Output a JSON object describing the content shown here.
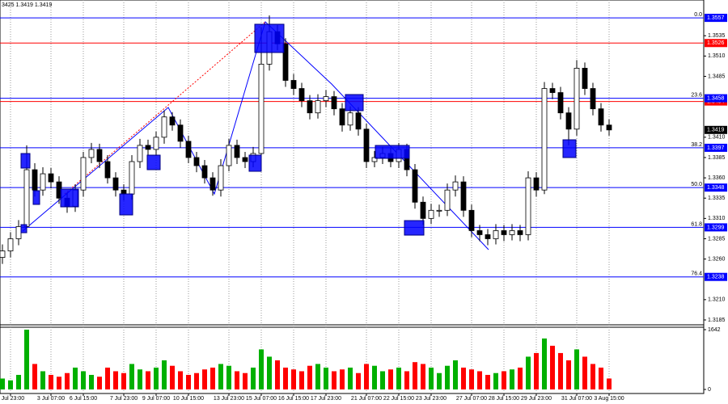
{
  "chart_data": {
    "type": "candlestick",
    "title": "3425 1.3419 1.3419",
    "categories": [
      null,
      "1 Jul 23:00",
      null,
      null,
      null,
      null,
      "3 Jul 07:00",
      null,
      null,
      null,
      "6 Jul 15:00",
      null,
      null,
      null,
      null,
      "7 Jul 23:00",
      null,
      null,
      null,
      "9 Jul 07:00",
      null,
      null,
      null,
      "10 Jul 15:00",
      null,
      null,
      null,
      null,
      "13 Jul 23:00",
      null,
      null,
      null,
      "15 Jul 07:00",
      null,
      null,
      null,
      "16 Jul 15:00",
      null,
      null,
      null,
      "17 Jul 23:00",
      null,
      null,
      null,
      null,
      "21 Jul 07:00",
      null,
      null,
      null,
      "22 Jul 15:00",
      null,
      null,
      null,
      "23 Jul 23:00",
      null,
      null,
      null,
      null,
      "27 Jul 07:00",
      null,
      null,
      null,
      "28 Jul 15:00",
      null,
      null,
      null,
      "29 Jul 23:00",
      null,
      null,
      null,
      null,
      "31 Jul 07:00",
      null,
      null,
      null,
      "3 Aug 15:00"
    ],
    "open": [
      1.3262,
      1.327,
      1.3285,
      1.33,
      1.337,
      1.3345,
      1.3365,
      1.3355,
      1.3335,
      1.3325,
      1.3345,
      1.3385,
      1.3395,
      1.338,
      1.336,
      1.3345,
      1.334,
      1.338,
      1.34,
      1.3395,
      1.341,
      1.3435,
      1.3425,
      1.3405,
      1.3385,
      1.3375,
      1.336,
      1.3345,
      1.3375,
      1.34,
      1.3385,
      1.338,
      1.339,
      1.35,
      1.354,
      1.3525,
      1.348,
      1.347,
      1.3455,
      1.344,
      1.3455,
      1.346,
      1.3445,
      1.3425,
      1.344,
      1.342,
      1.338,
      1.3385,
      1.339,
      1.338,
      1.3395,
      1.337,
      1.333,
      1.331,
      1.332,
      1.332,
      1.3345,
      1.3355,
      1.332,
      1.3295,
      1.329,
      1.3285,
      1.3295,
      1.329,
      1.3295,
      1.329,
      1.336,
      1.3345,
      1.347,
      1.3465,
      1.344,
      1.342,
      1.3495,
      1.347,
      1.3445,
      1.3425
    ],
    "high": [
      1.3278,
      1.3293,
      1.3308,
      1.34,
      1.3378,
      1.3373,
      1.3372,
      1.3362,
      1.3342,
      1.3352,
      1.3392,
      1.3403,
      1.3402,
      1.3388,
      1.3367,
      1.3352,
      1.3388,
      1.3408,
      1.3407,
      1.3417,
      1.3443,
      1.3441,
      1.3432,
      1.3412,
      1.3392,
      1.3382,
      1.3367,
      1.3383,
      1.3408,
      1.3407,
      1.3392,
      1.3398,
      1.3545,
      1.356,
      1.3548,
      1.3532,
      1.3488,
      1.3477,
      1.3462,
      1.3463,
      1.3468,
      1.3467,
      1.3452,
      1.3448,
      1.3447,
      1.3427,
      1.3393,
      1.3398,
      1.3397,
      1.3403,
      1.3402,
      1.3377,
      1.3337,
      1.3328,
      1.3327,
      1.3353,
      1.3363,
      1.3362,
      1.3327,
      1.3302,
      1.3297,
      1.3303,
      1.3302,
      1.3303,
      1.3302,
      1.3368,
      1.3367,
      1.3478,
      1.3477,
      1.3472,
      1.3447,
      1.3505,
      1.3502,
      1.3477,
      1.3452,
      1.3432
    ],
    "low": [
      1.3254,
      1.3262,
      1.3277,
      1.3295,
      1.3337,
      1.3338,
      1.3347,
      1.3328,
      1.3317,
      1.3318,
      1.3337,
      1.3378,
      1.3372,
      1.3353,
      1.3337,
      1.3332,
      1.3333,
      1.3372,
      1.3388,
      1.3387,
      1.3402,
      1.3418,
      1.3397,
      1.3378,
      1.3367,
      1.3353,
      1.3338,
      1.3337,
      1.3368,
      1.3377,
      1.3372,
      1.3373,
      1.3385,
      1.3492,
      1.3517,
      1.3472,
      1.3462,
      1.3447,
      1.3432,
      1.3433,
      1.3447,
      1.3437,
      1.3417,
      1.3418,
      1.3412,
      1.3372,
      1.3373,
      1.3377,
      1.3373,
      1.3372,
      1.3362,
      1.3322,
      1.3302,
      1.3303,
      1.3312,
      1.3313,
      1.3337,
      1.3312,
      1.3287,
      1.3282,
      1.3277,
      1.3278,
      1.3282,
      1.3283,
      1.3282,
      1.3283,
      1.3337,
      1.334,
      1.3457,
      1.3432,
      1.34,
      1.3412,
      1.3462,
      1.3437,
      1.3417,
      1.3412
    ],
    "close": [
      1.327,
      1.3285,
      1.33,
      1.337,
      1.3345,
      1.3365,
      1.3355,
      1.3335,
      1.3325,
      1.3345,
      1.3385,
      1.3395,
      1.338,
      1.336,
      1.3345,
      1.334,
      1.338,
      1.34,
      1.3395,
      1.341,
      1.3435,
      1.3425,
      1.3405,
      1.3385,
      1.3375,
      1.336,
      1.3345,
      1.3375,
      1.34,
      1.3385,
      1.338,
      1.339,
      1.35,
      1.354,
      1.3525,
      1.348,
      1.347,
      1.3455,
      1.344,
      1.3455,
      1.346,
      1.3445,
      1.3425,
      1.344,
      1.342,
      1.338,
      1.3385,
      1.339,
      1.338,
      1.3395,
      1.337,
      1.333,
      1.331,
      1.332,
      1.332,
      1.3345,
      1.3355,
      1.332,
      1.3295,
      1.329,
      1.3285,
      1.3295,
      1.329,
      1.3295,
      1.329,
      1.336,
      1.3345,
      1.347,
      1.3465,
      1.344,
      1.342,
      1.3495,
      1.347,
      1.3445,
      1.3425,
      1.3419
    ],
    "ylim": [
      1.3181,
      1.3579
    ],
    "yticks": [
      1.3535,
      {
        "value": 1.351,
        "label": "1.3510"
      },
      1.3485,
      {
        "value": 1.341,
        "label": "1.3410"
      },
      1.3385,
      {
        "value": 1.336,
        "label": "1.3360"
      },
      1.3335,
      {
        "value": 1.331,
        "label": "1.3310"
      },
      1.3285,
      {
        "value": 1.326,
        "label": "1.3260"
      },
      {
        "value": 1.321,
        "label": "1.3210"
      },
      1.3185
    ],
    "levels": [
      {
        "value": 1.3526,
        "color": "#ff0000"
      },
      {
        "value": 1.3454,
        "color": "#ff0000"
      },
      {
        "value": 1.3557,
        "label": "0.0",
        "color": "#0000ff"
      },
      {
        "value": 1.3458,
        "label": "23.6",
        "color": "#0000ff"
      },
      {
        "value": 1.3397,
        "label": "38.2",
        "color": "#0000ff"
      },
      {
        "value": 1.3348,
        "label": "50.0",
        "color": "#0000ff"
      },
      {
        "value": 1.3299,
        "label": "61.8",
        "color": "#0000ff"
      },
      {
        "value": 1.3238,
        "label": "76.4",
        "color": "#0000ff"
      }
    ],
    "grid": true,
    "up_color": "#00b000",
    "down_color": "#ff0000",
    "candle_color": "#000000",
    "volume": {
      "values": [
        300,
        250,
        400,
        1642,
        700,
        500,
        400,
        350,
        450,
        600,
        500,
        400,
        350,
        600,
        500,
        450,
        700,
        550,
        500,
        600,
        800,
        650,
        500,
        400,
        450,
        550,
        600,
        700,
        650,
        500,
        450,
        600,
        1100,
        900,
        800,
        600,
        550,
        500,
        650,
        700,
        600,
        500,
        550,
        600,
        450,
        700,
        650,
        500,
        550,
        600,
        500,
        750,
        700,
        600,
        450,
        650,
        800,
        600,
        550,
        500,
        400,
        450,
        500,
        550,
        600,
        900,
        1000,
        1400,
        1200,
        1000,
        800,
        1100,
        900,
        700,
        600,
        300
      ],
      "ylim": [
        0,
        1642
      ],
      "yticks": [
        0,
        1642
      ]
    }
  }
}
